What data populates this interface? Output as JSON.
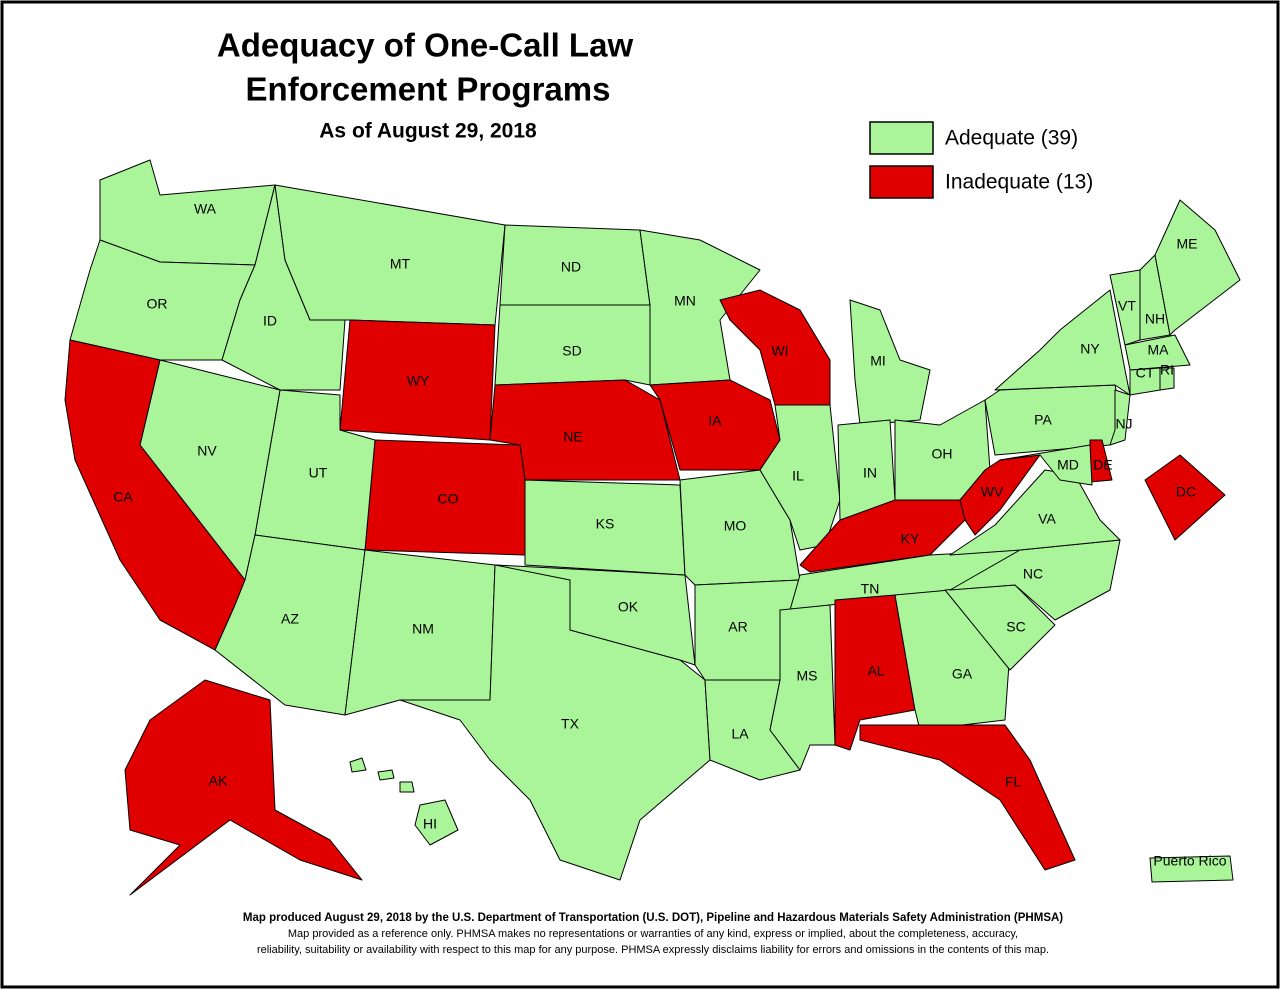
{
  "header": {
    "title_lines": [
      "Adequacy of One-Call Law",
      "Enforcement Programs"
    ],
    "subtitle": "As of August 29, 2018"
  },
  "legend": [
    {
      "label": "Adequate (39)",
      "color": "#aaf59a"
    },
    {
      "label": "Inadequate (13)",
      "color": "#e00000"
    }
  ],
  "states": [
    {
      "abbr": "WA",
      "color": "#aaf59a"
    },
    {
      "abbr": "OR",
      "color": "#aaf59a"
    },
    {
      "abbr": "ID",
      "color": "#aaf59a"
    },
    {
      "abbr": "MT",
      "color": "#aaf59a"
    },
    {
      "abbr": "ND",
      "color": "#aaf59a"
    },
    {
      "abbr": "SD",
      "color": "#aaf59a"
    },
    {
      "abbr": "WY",
      "color": "#e00000"
    },
    {
      "abbr": "NE",
      "color": "#e00000"
    },
    {
      "abbr": "CO",
      "color": "#e00000"
    },
    {
      "abbr": "UT",
      "color": "#aaf59a"
    },
    {
      "abbr": "NV",
      "color": "#aaf59a"
    },
    {
      "abbr": "CA",
      "color": "#e00000"
    },
    {
      "abbr": "AZ",
      "color": "#aaf59a"
    },
    {
      "abbr": "NM",
      "color": "#aaf59a"
    },
    {
      "abbr": "TX",
      "color": "#aaf59a"
    },
    {
      "abbr": "OK",
      "color": "#aaf59a"
    },
    {
      "abbr": "KS",
      "color": "#aaf59a"
    },
    {
      "abbr": "MN",
      "color": "#aaf59a"
    },
    {
      "abbr": "IA",
      "color": "#e00000"
    },
    {
      "abbr": "MO",
      "color": "#aaf59a"
    },
    {
      "abbr": "AR",
      "color": "#aaf59a"
    },
    {
      "abbr": "LA",
      "color": "#aaf59a"
    },
    {
      "abbr": "WI",
      "color": "#e00000"
    },
    {
      "abbr": "IL",
      "color": "#aaf59a"
    },
    {
      "abbr": "MI",
      "color": "#aaf59a"
    },
    {
      "abbr": "IN",
      "color": "#aaf59a"
    },
    {
      "abbr": "OH",
      "color": "#aaf59a"
    },
    {
      "abbr": "KY",
      "color": "#e00000"
    },
    {
      "abbr": "TN",
      "color": "#aaf59a"
    },
    {
      "abbr": "MS",
      "color": "#aaf59a"
    },
    {
      "abbr": "AL",
      "color": "#e00000"
    },
    {
      "abbr": "GA",
      "color": "#aaf59a"
    },
    {
      "abbr": "FL",
      "color": "#e00000"
    },
    {
      "abbr": "SC",
      "color": "#aaf59a"
    },
    {
      "abbr": "NC",
      "color": "#aaf59a"
    },
    {
      "abbr": "VA",
      "color": "#aaf59a"
    },
    {
      "abbr": "WV",
      "color": "#e00000"
    },
    {
      "abbr": "PA",
      "color": "#aaf59a"
    },
    {
      "abbr": "NY",
      "color": "#aaf59a"
    },
    {
      "abbr": "NJ",
      "color": "#aaf59a"
    },
    {
      "abbr": "DE",
      "color": "#e00000"
    },
    {
      "abbr": "MD",
      "color": "#aaf59a"
    },
    {
      "abbr": "VT",
      "color": "#aaf59a"
    },
    {
      "abbr": "NH",
      "color": "#aaf59a"
    },
    {
      "abbr": "ME",
      "color": "#aaf59a"
    },
    {
      "abbr": "MA",
      "color": "#aaf59a"
    },
    {
      "abbr": "CT",
      "color": "#aaf59a"
    },
    {
      "abbr": "RI",
      "color": "#aaf59a"
    },
    {
      "abbr": "DC",
      "color": "#e00000"
    },
    {
      "abbr": "AK",
      "color": "#e00000"
    },
    {
      "abbr": "HI",
      "color": "#aaf59a"
    },
    {
      "abbr": "Puerto Rico",
      "color": "#aaf59a"
    }
  ],
  "footer": [
    "Map produced August 29, 2018 by the U.S. Department of Transportation (U.S. DOT), Pipeline and Hazardous Materials Safety Administration (PHMSA)",
    "Map provided as a reference only.  PHMSA makes no representations or warranties of any kind, express or implied, about the completeness, accuracy,",
    "reliability, suitability or availability with respect to this map for any purpose.  PHMSA expressly disclaims liability for errors and omissions in the contents of this map."
  ]
}
